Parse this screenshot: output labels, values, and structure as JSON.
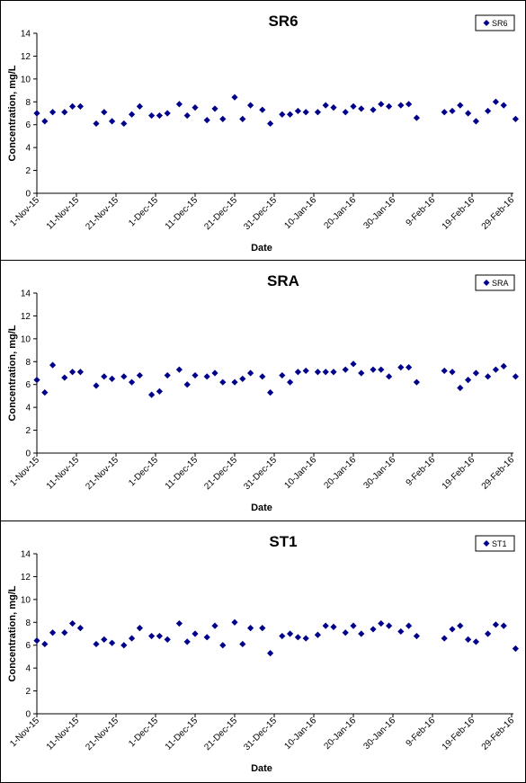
{
  "chart_data": [
    {
      "type": "scatter",
      "title": "SR6",
      "xlabel": "Date",
      "ylabel": "Concentration, mg/L",
      "ylim": [
        0,
        14
      ],
      "yticks": [
        0,
        2,
        4,
        6,
        8,
        10,
        12,
        14
      ],
      "xlim": [
        "2015-11-01",
        "2016-02-29"
      ],
      "xtick_labels": [
        "1-Nov-15",
        "11-Nov-15",
        "21-Nov-15",
        "1-Dec-15",
        "11-Dec-15",
        "21-Dec-15",
        "31-Dec-15",
        "10-Jan-16",
        "20-Jan-16",
        "30-Jan-16",
        "9-Feb-16",
        "19-Feb-16",
        "29-Feb-16"
      ],
      "legend": "top-right",
      "grid": false,
      "color": "#00008B",
      "series": [
        {
          "name": "SR6",
          "points": [
            [
              "2015-11-01",
              7.0
            ],
            [
              "2015-11-03",
              6.3
            ],
            [
              "2015-11-05",
              7.1
            ],
            [
              "2015-11-08",
              7.1
            ],
            [
              "2015-11-10",
              7.6
            ],
            [
              "2015-11-12",
              7.6
            ],
            [
              "2015-11-16",
              6.1
            ],
            [
              "2015-11-18",
              7.1
            ],
            [
              "2015-11-20",
              6.3
            ],
            [
              "2015-11-23",
              6.1
            ],
            [
              "2015-11-25",
              6.9
            ],
            [
              "2015-11-27",
              7.6
            ],
            [
              "2015-11-30",
              6.8
            ],
            [
              "2015-12-02",
              6.8
            ],
            [
              "2015-12-04",
              7.0
            ],
            [
              "2015-12-07",
              7.8
            ],
            [
              "2015-12-09",
              6.8
            ],
            [
              "2015-12-11",
              7.5
            ],
            [
              "2015-12-14",
              6.4
            ],
            [
              "2015-12-16",
              7.4
            ],
            [
              "2015-12-18",
              6.5
            ],
            [
              "2015-12-21",
              8.4
            ],
            [
              "2015-12-23",
              6.5
            ],
            [
              "2015-12-25",
              7.7
            ],
            [
              "2015-12-28",
              7.3
            ],
            [
              "2015-12-30",
              6.1
            ],
            [
              "2016-01-02",
              6.9
            ],
            [
              "2016-01-04",
              6.9
            ],
            [
              "2016-01-06",
              7.2
            ],
            [
              "2016-01-08",
              7.1
            ],
            [
              "2016-01-11",
              7.1
            ],
            [
              "2016-01-13",
              7.7
            ],
            [
              "2016-01-15",
              7.5
            ],
            [
              "2016-01-18",
              7.1
            ],
            [
              "2016-01-20",
              7.6
            ],
            [
              "2016-01-22",
              7.4
            ],
            [
              "2016-01-25",
              7.3
            ],
            [
              "2016-01-27",
              7.8
            ],
            [
              "2016-01-29",
              7.6
            ],
            [
              "2016-02-01",
              7.7
            ],
            [
              "2016-02-03",
              7.8
            ],
            [
              "2016-02-05",
              6.6
            ],
            [
              "2016-02-12",
              7.1
            ],
            [
              "2016-02-14",
              7.2
            ],
            [
              "2016-02-16",
              7.7
            ],
            [
              "2016-02-18",
              7.0
            ],
            [
              "2016-02-20",
              6.3
            ],
            [
              "2016-02-23",
              7.2
            ],
            [
              "2016-02-25",
              8.0
            ],
            [
              "2016-02-27",
              7.7
            ],
            [
              "2016-03-01",
              6.5
            ]
          ]
        }
      ]
    },
    {
      "type": "scatter",
      "title": "SRA",
      "xlabel": "Date",
      "ylabel": "Concentration, mg/L",
      "ylim": [
        0,
        14
      ],
      "yticks": [
        0,
        2,
        4,
        6,
        8,
        10,
        12,
        14
      ],
      "xlim": [
        "2015-11-01",
        "2016-02-29"
      ],
      "xtick_labels": [
        "1-Nov-15",
        "11-Nov-15",
        "21-Nov-15",
        "1-Dec-15",
        "11-Dec-15",
        "21-Dec-15",
        "31-Dec-15",
        "10-Jan-16",
        "20-Jan-16",
        "30-Jan-16",
        "9-Feb-16",
        "19-Feb-16",
        "29-Feb-16"
      ],
      "legend": "top-right",
      "grid": false,
      "color": "#00008B",
      "series": [
        {
          "name": "SRA",
          "points": [
            [
              "2015-11-01",
              6.4
            ],
            [
              "2015-11-03",
              5.3
            ],
            [
              "2015-11-05",
              7.7
            ],
            [
              "2015-11-08",
              6.6
            ],
            [
              "2015-11-10",
              7.1
            ],
            [
              "2015-11-12",
              7.1
            ],
            [
              "2015-11-16",
              5.9
            ],
            [
              "2015-11-18",
              6.7
            ],
            [
              "2015-11-20",
              6.5
            ],
            [
              "2015-11-23",
              6.7
            ],
            [
              "2015-11-25",
              6.2
            ],
            [
              "2015-11-27",
              6.8
            ],
            [
              "2015-11-30",
              5.1
            ],
            [
              "2015-12-02",
              5.4
            ],
            [
              "2015-12-04",
              6.8
            ],
            [
              "2015-12-07",
              7.3
            ],
            [
              "2015-12-09",
              6.0
            ],
            [
              "2015-12-11",
              6.8
            ],
            [
              "2015-12-14",
              6.7
            ],
            [
              "2015-12-16",
              7.0
            ],
            [
              "2015-12-18",
              6.2
            ],
            [
              "2015-12-21",
              6.2
            ],
            [
              "2015-12-23",
              6.5
            ],
            [
              "2015-12-25",
              7.0
            ],
            [
              "2015-12-28",
              6.7
            ],
            [
              "2015-12-30",
              5.3
            ],
            [
              "2016-01-02",
              6.8
            ],
            [
              "2016-01-04",
              6.2
            ],
            [
              "2016-01-06",
              7.1
            ],
            [
              "2016-01-08",
              7.2
            ],
            [
              "2016-01-11",
              7.1
            ],
            [
              "2016-01-13",
              7.1
            ],
            [
              "2016-01-15",
              7.1
            ],
            [
              "2016-01-18",
              7.3
            ],
            [
              "2016-01-20",
              7.8
            ],
            [
              "2016-01-22",
              7.0
            ],
            [
              "2016-01-25",
              7.3
            ],
            [
              "2016-01-27",
              7.3
            ],
            [
              "2016-01-29",
              6.7
            ],
            [
              "2016-02-01",
              7.5
            ],
            [
              "2016-02-03",
              7.5
            ],
            [
              "2016-02-05",
              6.2
            ],
            [
              "2016-02-12",
              7.2
            ],
            [
              "2016-02-14",
              7.1
            ],
            [
              "2016-02-16",
              5.7
            ],
            [
              "2016-02-18",
              6.4
            ],
            [
              "2016-02-20",
              7.0
            ],
            [
              "2016-02-23",
              6.7
            ],
            [
              "2016-02-25",
              7.3
            ],
            [
              "2016-02-27",
              7.6
            ],
            [
              "2016-03-01",
              6.7
            ]
          ]
        }
      ]
    },
    {
      "type": "scatter",
      "title": "ST1",
      "xlabel": "Date",
      "ylabel": "Concentration, mg/L",
      "ylim": [
        0,
        14
      ],
      "yticks": [
        0,
        2,
        4,
        6,
        8,
        10,
        12,
        14
      ],
      "xlim": [
        "2015-11-01",
        "2016-02-29"
      ],
      "xtick_labels": [
        "1-Nov-15",
        "11-Nov-15",
        "21-Nov-15",
        "1-Dec-15",
        "11-Dec-15",
        "21-Dec-15",
        "31-Dec-15",
        "10-Jan-16",
        "20-Jan-16",
        "30-Jan-16",
        "9-Feb-16",
        "19-Feb-16",
        "29-Feb-16"
      ],
      "legend": "top-right",
      "grid": false,
      "color": "#00008B",
      "series": [
        {
          "name": "ST1",
          "points": [
            [
              "2015-11-01",
              6.4
            ],
            [
              "2015-11-03",
              6.1
            ],
            [
              "2015-11-05",
              7.1
            ],
            [
              "2015-11-08",
              7.1
            ],
            [
              "2015-11-10",
              7.9
            ],
            [
              "2015-11-12",
              7.5
            ],
            [
              "2015-11-16",
              6.1
            ],
            [
              "2015-11-18",
              6.5
            ],
            [
              "2015-11-20",
              6.2
            ],
            [
              "2015-11-23",
              6.0
            ],
            [
              "2015-11-25",
              6.6
            ],
            [
              "2015-11-27",
              7.5
            ],
            [
              "2015-11-30",
              6.8
            ],
            [
              "2015-12-02",
              6.8
            ],
            [
              "2015-12-04",
              6.5
            ],
            [
              "2015-12-07",
              7.9
            ],
            [
              "2015-12-09",
              6.3
            ],
            [
              "2015-12-11",
              7.0
            ],
            [
              "2015-12-14",
              6.7
            ],
            [
              "2015-12-16",
              7.7
            ],
            [
              "2015-12-18",
              6.0
            ],
            [
              "2015-12-21",
              8.0
            ],
            [
              "2015-12-23",
              6.1
            ],
            [
              "2015-12-25",
              7.5
            ],
            [
              "2015-12-28",
              7.5
            ],
            [
              "2015-12-30",
              5.3
            ],
            [
              "2016-01-02",
              6.8
            ],
            [
              "2016-01-04",
              7.0
            ],
            [
              "2016-01-06",
              6.7
            ],
            [
              "2016-01-08",
              6.6
            ],
            [
              "2016-01-11",
              6.9
            ],
            [
              "2016-01-13",
              7.7
            ],
            [
              "2016-01-15",
              7.6
            ],
            [
              "2016-01-18",
              7.1
            ],
            [
              "2016-01-20",
              7.7
            ],
            [
              "2016-01-22",
              7.0
            ],
            [
              "2016-01-25",
              7.4
            ],
            [
              "2016-01-27",
              7.9
            ],
            [
              "2016-01-29",
              7.7
            ],
            [
              "2016-02-01",
              7.2
            ],
            [
              "2016-02-03",
              7.7
            ],
            [
              "2016-02-05",
              6.8
            ],
            [
              "2016-02-12",
              6.6
            ],
            [
              "2016-02-14",
              7.4
            ],
            [
              "2016-02-16",
              7.7
            ],
            [
              "2016-02-18",
              6.5
            ],
            [
              "2016-02-20",
              6.3
            ],
            [
              "2016-02-23",
              7.0
            ],
            [
              "2016-02-25",
              7.8
            ],
            [
              "2016-02-27",
              7.7
            ],
            [
              "2016-03-01",
              5.7
            ]
          ]
        }
      ]
    }
  ]
}
